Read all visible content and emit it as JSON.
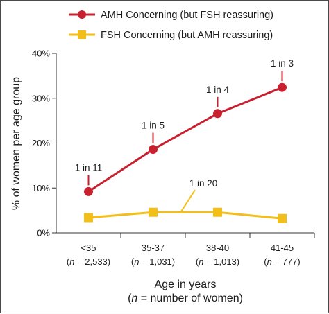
{
  "chart_data": {
    "type": "line",
    "xlabel_line1": "Age in years",
    "xlabel_line2_italic": "n",
    "xlabel_line2_rest": " = number of women)",
    "xlabel_line2_open": "(",
    "ylabel": "% of women per age group",
    "ylim": [
      0,
      40
    ],
    "yticks": [
      "0%",
      "10%",
      "20%",
      "30%",
      "40%"
    ],
    "categories": [
      {
        "label": "<35",
        "n": "2,533"
      },
      {
        "label": "35-37",
        "n": "1,031"
      },
      {
        "label": "38-40",
        "n": "1,013"
      },
      {
        "label": "41-45",
        "n": "777"
      }
    ],
    "n_prefix": "(",
    "n_italic": "n",
    "n_eq": " = ",
    "n_suffix": ")",
    "series": [
      {
        "name": "AMH Concerning (but FSH reassuring)",
        "color": "#c8202f",
        "marker": "circle",
        "values": [
          9.2,
          18.6,
          26.6,
          32.4
        ],
        "labels": [
          "1 in 11",
          "1 in 5",
          "1 in 4",
          "1 in 3"
        ]
      },
      {
        "name": "FSH Concerning (but AMH reassuring)",
        "color": "#f2be1a",
        "marker": "square",
        "values": [
          3.4,
          4.6,
          4.6,
          3.2
        ],
        "labels": [
          "1 in 20"
        ]
      }
    ],
    "grid": false,
    "legend": "top"
  }
}
